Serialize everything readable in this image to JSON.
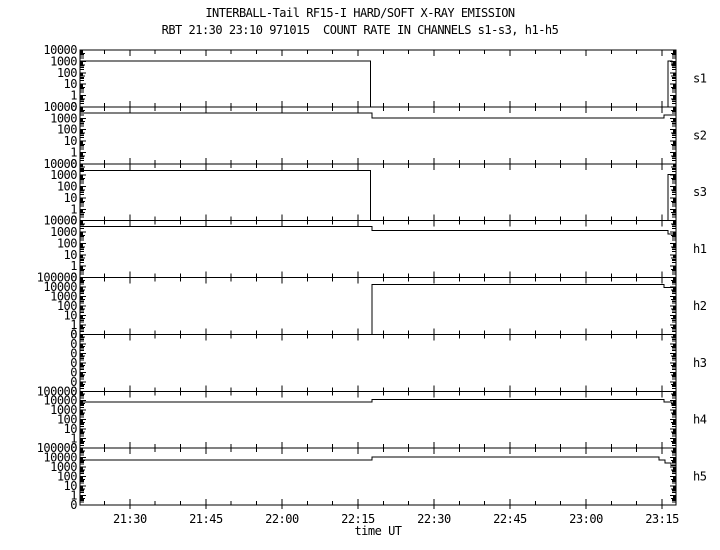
{
  "chart_data": {
    "type": "line",
    "style": "step",
    "title": "INTERBALL-Tail RF15-I HARD/SOFT X-RAY EMISSION",
    "subtitle": "RBT 21:30 23:10 971015  COUNT RATE IN CHANNELS s1-s3, h1-h5",
    "xlabel": "time UT",
    "line_color": "#000000",
    "background_color": "#ffffff",
    "x": {
      "tick_labels": [
        "21:30",
        "21:45",
        "22:00",
        "22:15",
        "22:30",
        "22:45",
        "23:00",
        "23:15"
      ],
      "range_hours": [
        21.336,
        23.296
      ],
      "minor_tick_minutes": 5
    },
    "panels": [
      {
        "label": "s1",
        "y_tick_labels": [
          "10000",
          "1000",
          "100",
          "10",
          "1",
          "0"
        ],
        "top_value": 10000,
        "series": {
          "name": "s1",
          "units": "counts",
          "step_points": [
            [
              21.336,
              1100
            ],
            [
              22.292,
              1100
            ],
            [
              22.292,
              0
            ],
            [
              23.27,
              0
            ],
            [
              23.27,
              1050
            ],
            [
              23.283,
              1050
            ],
            [
              23.283,
              600
            ],
            [
              23.296,
              600
            ]
          ]
        }
      },
      {
        "label": "s2",
        "y_tick_labels": [
          "10000",
          "1000",
          "100",
          "10",
          "1",
          "0"
        ],
        "top_value": 10000,
        "series": {
          "name": "s2",
          "units": "counts",
          "step_points": [
            [
              21.336,
              3000
            ],
            [
              22.296,
              3000
            ],
            [
              22.296,
              1100
            ],
            [
              23.257,
              1100
            ],
            [
              23.257,
              2000
            ],
            [
              23.296,
              2000
            ]
          ]
        }
      },
      {
        "label": "s3",
        "y_tick_labels": [
          "10000",
          "1000",
          "100",
          "10",
          "1",
          "0"
        ],
        "top_value": 10000,
        "series": {
          "name": "s3",
          "units": "counts",
          "step_points": [
            [
              21.336,
              2500
            ],
            [
              22.292,
              2500
            ],
            [
              22.292,
              0
            ],
            [
              23.27,
              0
            ],
            [
              23.27,
              1100
            ],
            [
              23.296,
              1100
            ]
          ]
        }
      },
      {
        "label": "h1",
        "y_tick_labels": [
          "10000",
          "1000",
          "100",
          "10",
          "1",
          "0"
        ],
        "top_value": 10000,
        "series": {
          "name": "h1",
          "units": "counts",
          "step_points": [
            [
              21.336,
              3000
            ],
            [
              22.296,
              3000
            ],
            [
              22.296,
              1300
            ],
            [
              23.27,
              1300
            ],
            [
              23.27,
              700
            ],
            [
              23.296,
              700
            ]
          ]
        }
      },
      {
        "label": "h2",
        "y_tick_labels": [
          "100000",
          "10000",
          "1000",
          "100",
          "10",
          "1",
          "0"
        ],
        "top_value": 100000,
        "series": {
          "name": "h2",
          "units": "counts",
          "step_points": [
            [
              21.336,
              0
            ],
            [
              22.296,
              0
            ],
            [
              22.296,
              18000
            ],
            [
              23.257,
              18000
            ],
            [
              23.257,
              9000
            ],
            [
              23.287,
              9000
            ],
            [
              23.287,
              5000
            ],
            [
              23.296,
              5000
            ]
          ]
        }
      },
      {
        "label": "h3",
        "y_tick_labels": [
          "0",
          "0",
          "0",
          "0",
          "0",
          "0",
          "0"
        ],
        "top_value": 0,
        "series": {
          "name": "h3",
          "units": "counts",
          "step_points": [
            [
              21.336,
              0
            ],
            [
              23.296,
              0
            ]
          ]
        }
      },
      {
        "label": "h4",
        "y_tick_labels": [
          "100000",
          "10000",
          "1000",
          "100",
          "10",
          "1",
          "0"
        ],
        "top_value": 100000,
        "series": {
          "name": "h4",
          "units": "counts",
          "step_points": [
            [
              21.336,
              7000
            ],
            [
              22.296,
              7000
            ],
            [
              22.296,
              13000
            ],
            [
              23.257,
              13000
            ],
            [
              23.257,
              7000
            ],
            [
              23.283,
              7000
            ],
            [
              23.283,
              3000
            ],
            [
              23.296,
              3000
            ]
          ]
        }
      },
      {
        "label": "h5",
        "y_tick_labels": [
          "100000",
          "10000",
          "1000",
          "100",
          "10",
          "1",
          "0"
        ],
        "top_value": 100000,
        "series": {
          "name": "h5",
          "units": "counts",
          "step_points": [
            [
              21.336,
              5500
            ],
            [
              22.296,
              5500
            ],
            [
              22.296,
              11000
            ],
            [
              23.24,
              11000
            ],
            [
              23.24,
              5500
            ],
            [
              23.26,
              5500
            ],
            [
              23.26,
              2600
            ],
            [
              23.28,
              2600
            ],
            [
              23.28,
              1450
            ],
            [
              23.296,
              1450
            ]
          ]
        }
      }
    ]
  }
}
